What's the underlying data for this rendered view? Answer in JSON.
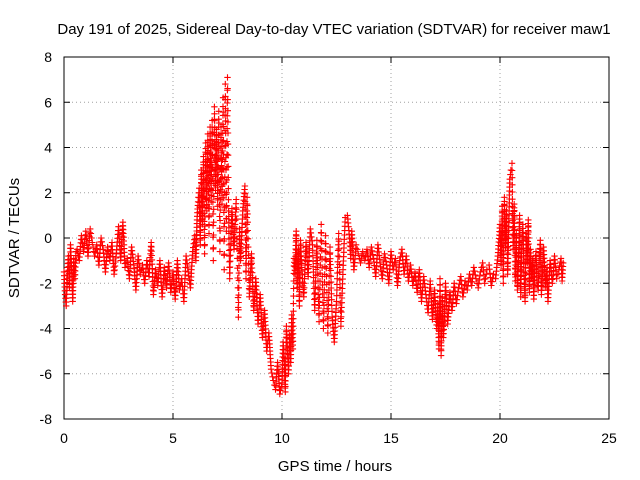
{
  "chart_data": {
    "type": "scatter",
    "title": "Day 191 of 2025, Sidereal Day-to-day VTEC variation (SDTVAR) for receiver maw1",
    "xlabel": "GPS time / hours",
    "ylabel": "SDTVAR / TECUs",
    "xlim": [
      0,
      25
    ],
    "ylim": [
      -8,
      8
    ],
    "xticks": [
      0,
      5,
      10,
      15,
      20,
      25
    ],
    "xtick_labels": [
      "0",
      "5",
      "10",
      "15",
      "20",
      "25"
    ],
    "yticks": [
      -8,
      -6,
      -4,
      -2,
      0,
      2,
      4,
      6,
      8
    ],
    "ytick_labels": [
      "-8",
      "-6",
      "-4",
      "-2",
      "0",
      "2",
      "4",
      "6",
      "8"
    ],
    "grid": true,
    "marker": "+",
    "color": "#ff0000",
    "series": [
      {
        "name": "SDTVAR",
        "points": [
          [
            0.0,
            -1.5
          ],
          [
            0.05,
            -2.5
          ],
          [
            0.1,
            -3.0
          ],
          [
            0.15,
            -1.8
          ],
          [
            0.2,
            -0.8
          ],
          [
            0.25,
            -2.2
          ],
          [
            0.3,
            -0.3
          ],
          [
            0.35,
            -1.4
          ],
          [
            0.4,
            -2.8
          ],
          [
            0.45,
            -0.9
          ],
          [
            0.5,
            -1.8
          ],
          [
            0.55,
            -0.6
          ],
          [
            0.6,
            -0.5
          ],
          [
            0.7,
            -1.0
          ],
          [
            0.8,
            0.1
          ],
          [
            0.9,
            -0.6
          ],
          [
            1.0,
            0.3
          ],
          [
            1.1,
            -0.8
          ],
          [
            1.2,
            0.4
          ],
          [
            1.3,
            -0.2
          ],
          [
            1.4,
            -0.8
          ],
          [
            1.5,
            -0.3
          ],
          [
            1.6,
            -1.2
          ],
          [
            1.7,
            0.0
          ],
          [
            1.8,
            -0.5
          ],
          [
            1.9,
            -1.5
          ],
          [
            2.0,
            -0.4
          ],
          [
            2.1,
            -1.0
          ],
          [
            2.2,
            -0.2
          ],
          [
            2.3,
            -1.6
          ],
          [
            2.4,
            -0.7
          ],
          [
            2.5,
            0.5
          ],
          [
            2.6,
            -1.0
          ],
          [
            2.7,
            0.7
          ],
          [
            2.8,
            -1.3
          ],
          [
            2.9,
            -0.9
          ],
          [
            3.0,
            -1.8
          ],
          [
            3.1,
            -0.4
          ],
          [
            3.2,
            -1.2
          ],
          [
            3.3,
            -2.3
          ],
          [
            3.4,
            -0.8
          ],
          [
            3.5,
            -1.6
          ],
          [
            3.6,
            -1.2
          ],
          [
            3.7,
            -2.0
          ],
          [
            3.8,
            -1.0
          ],
          [
            3.9,
            -1.7
          ],
          [
            4.0,
            -0.2
          ],
          [
            4.1,
            -2.5
          ],
          [
            4.2,
            -1.4
          ],
          [
            4.3,
            -2.1
          ],
          [
            4.4,
            -1.0
          ],
          [
            4.5,
            -2.6
          ],
          [
            4.6,
            -1.3
          ],
          [
            4.7,
            -2.2
          ],
          [
            4.8,
            -1.1
          ],
          [
            4.9,
            -2.4
          ],
          [
            5.0,
            -1.5
          ],
          [
            5.1,
            -2.7
          ],
          [
            5.2,
            -1.0
          ],
          [
            5.3,
            -2.3
          ],
          [
            5.4,
            -1.8
          ],
          [
            5.5,
            -2.8
          ],
          [
            5.6,
            -0.8
          ],
          [
            5.7,
            -1.5
          ],
          [
            5.8,
            -2.2
          ],
          [
            5.9,
            -0.6
          ],
          [
            6.0,
            0.1
          ],
          [
            6.05,
            -1.0
          ],
          [
            6.1,
            0.8
          ],
          [
            6.15,
            1.6
          ],
          [
            6.2,
            2.2
          ],
          [
            6.25,
            -0.3
          ],
          [
            6.3,
            3.0
          ],
          [
            6.35,
            0.6
          ],
          [
            6.4,
            3.6
          ],
          [
            6.45,
            -0.7
          ],
          [
            6.5,
            4.2
          ],
          [
            6.55,
            1.2
          ],
          [
            6.6,
            4.6
          ],
          [
            6.65,
            0.2
          ],
          [
            6.7,
            4.9
          ],
          [
            6.75,
            1.6
          ],
          [
            6.8,
            5.2
          ],
          [
            6.85,
            -1.0
          ],
          [
            6.9,
            5.8
          ],
          [
            6.95,
            2.1
          ],
          [
            7.0,
            4.8
          ],
          [
            7.05,
            1.4
          ],
          [
            7.1,
            5.6
          ],
          [
            7.15,
            -0.6
          ],
          [
            7.2,
            4.9
          ],
          [
            7.25,
            1.5
          ],
          [
            7.3,
            6.2
          ],
          [
            7.35,
            -1.4
          ],
          [
            7.4,
            6.8
          ],
          [
            7.45,
            0.3
          ],
          [
            7.5,
            7.1
          ],
          [
            7.55,
            1.2
          ],
          [
            7.6,
            -1.8
          ],
          [
            7.7,
            1.3
          ],
          [
            7.8,
            -0.5
          ],
          [
            7.9,
            1.7
          ],
          [
            8.0,
            -3.5
          ],
          [
            8.05,
            0.4
          ],
          [
            8.1,
            -1.0
          ],
          [
            8.2,
            1.2
          ],
          [
            8.3,
            2.3
          ],
          [
            8.35,
            -1.8
          ],
          [
            8.4,
            1.8
          ],
          [
            8.5,
            -2.6
          ],
          [
            8.6,
            -0.7
          ],
          [
            8.7,
            -3.2
          ],
          [
            8.8,
            -1.8
          ],
          [
            8.9,
            -3.8
          ],
          [
            9.0,
            -2.5
          ],
          [
            9.1,
            -4.4
          ],
          [
            9.2,
            -3.2
          ],
          [
            9.3,
            -5.0
          ],
          [
            9.4,
            -4.2
          ],
          [
            9.5,
            -5.8
          ],
          [
            9.6,
            -6.3
          ],
          [
            9.7,
            -6.7
          ],
          [
            9.8,
            -5.5
          ],
          [
            9.9,
            -6.9
          ],
          [
            10.0,
            -6.4
          ],
          [
            10.05,
            -4.6
          ],
          [
            10.1,
            -5.3
          ],
          [
            10.15,
            -6.8
          ],
          [
            10.2,
            -3.9
          ],
          [
            10.3,
            -6.0
          ],
          [
            10.35,
            -4.3
          ],
          [
            10.4,
            -5.5
          ],
          [
            10.45,
            -3.4
          ],
          [
            10.5,
            -4.9
          ],
          [
            10.55,
            -0.9
          ],
          [
            10.6,
            -1.6
          ],
          [
            10.65,
            0.3
          ],
          [
            10.7,
            -2.2
          ],
          [
            10.75,
            -0.5
          ],
          [
            10.8,
            -3.0
          ],
          [
            10.85,
            -0.1
          ],
          [
            10.9,
            -1.3
          ],
          [
            11.0,
            -2.6
          ],
          [
            11.1,
            -0.2
          ],
          [
            11.2,
            -1.7
          ],
          [
            11.3,
            0.4
          ],
          [
            11.4,
            -0.3
          ],
          [
            11.5,
            -3.2
          ],
          [
            11.6,
            -0.1
          ],
          [
            11.7,
            -3.7
          ],
          [
            11.8,
            0.6
          ],
          [
            11.9,
            -4.0
          ],
          [
            12.0,
            0.1
          ],
          [
            12.1,
            -4.2
          ],
          [
            12.2,
            -0.4
          ],
          [
            12.3,
            -3.5
          ],
          [
            12.4,
            -4.6
          ],
          [
            12.5,
            -2.8
          ],
          [
            12.6,
            0.2
          ],
          [
            12.7,
            -3.9
          ],
          [
            12.8,
            -1.4
          ],
          [
            12.9,
            0.9
          ],
          [
            13.0,
            1.0
          ],
          [
            13.1,
            0.0
          ],
          [
            13.15,
            -0.9
          ],
          [
            13.2,
            0.3
          ],
          [
            13.3,
            -1.4
          ],
          [
            13.4,
            -0.3
          ],
          [
            13.5,
            -0.7
          ],
          [
            13.6,
            -1.1
          ],
          [
            13.7,
            -0.6
          ],
          [
            13.8,
            -1.0
          ],
          [
            13.9,
            -0.5
          ],
          [
            14.0,
            -1.3
          ],
          [
            14.1,
            -0.4
          ],
          [
            14.2,
            -0.9
          ],
          [
            14.3,
            -1.7
          ],
          [
            14.4,
            -0.3
          ],
          [
            14.5,
            -1.1
          ],
          [
            14.6,
            -1.8
          ],
          [
            14.7,
            -0.7
          ],
          [
            14.8,
            -1.2
          ],
          [
            14.9,
            -2.0
          ],
          [
            15.0,
            -0.6
          ],
          [
            15.1,
            -1.4
          ],
          [
            15.2,
            -0.9
          ],
          [
            15.3,
            -2.1
          ],
          [
            15.4,
            -1.0
          ],
          [
            15.5,
            -0.5
          ],
          [
            15.6,
            -1.6
          ],
          [
            15.7,
            -0.8
          ],
          [
            15.8,
            -1.9
          ],
          [
            15.9,
            -1.2
          ],
          [
            16.0,
            -2.1
          ],
          [
            16.1,
            -1.5
          ],
          [
            16.2,
            -2.4
          ],
          [
            16.3,
            -1.4
          ],
          [
            16.4,
            -2.8
          ],
          [
            16.5,
            -1.7
          ],
          [
            16.6,
            -2.5
          ],
          [
            16.7,
            -3.3
          ],
          [
            16.8,
            -1.9
          ],
          [
            16.9,
            -3.6
          ],
          [
            17.0,
            -2.3
          ],
          [
            17.1,
            -4.0
          ],
          [
            17.15,
            -2.9
          ],
          [
            17.2,
            -4.9
          ],
          [
            17.25,
            -1.8
          ],
          [
            17.3,
            -5.2
          ],
          [
            17.35,
            -2.6
          ],
          [
            17.4,
            -4.4
          ],
          [
            17.45,
            -3.5
          ],
          [
            17.5,
            -2.0
          ],
          [
            17.6,
            -3.8
          ],
          [
            17.7,
            -2.4
          ],
          [
            17.8,
            -3.2
          ],
          [
            17.9,
            -2.0
          ],
          [
            18.0,
            -2.9
          ],
          [
            18.1,
            -2.2
          ],
          [
            18.2,
            -1.7
          ],
          [
            18.3,
            -2.6
          ],
          [
            18.4,
            -1.9
          ],
          [
            18.5,
            -2.3
          ],
          [
            18.6,
            -1.6
          ],
          [
            18.7,
            -2.1
          ],
          [
            18.8,
            -1.3
          ],
          [
            18.9,
            -1.8
          ],
          [
            19.0,
            -2.2
          ],
          [
            19.1,
            -1.5
          ],
          [
            19.2,
            -1.1
          ],
          [
            19.3,
            -2.0
          ],
          [
            19.4,
            -1.4
          ],
          [
            19.5,
            -1.2
          ],
          [
            19.6,
            -2.1
          ],
          [
            19.7,
            -1.6
          ],
          [
            19.8,
            -1.8
          ],
          [
            19.9,
            -0.8
          ],
          [
            20.0,
            0.6
          ],
          [
            20.05,
            -1.2
          ],
          [
            20.1,
            1.4
          ],
          [
            20.15,
            -2.0
          ],
          [
            20.2,
            1.8
          ],
          [
            20.25,
            -0.4
          ],
          [
            20.3,
            1.2
          ],
          [
            20.35,
            -1.6
          ],
          [
            20.4,
            0.5
          ],
          [
            20.45,
            2.6
          ],
          [
            20.5,
            3.0
          ],
          [
            20.55,
            3.3
          ],
          [
            20.6,
            -0.5
          ],
          [
            20.65,
            1.5
          ],
          [
            20.7,
            -1.9
          ],
          [
            20.75,
            0.2
          ],
          [
            20.8,
            -2.3
          ],
          [
            20.85,
            -1.0
          ],
          [
            20.9,
            1.0
          ],
          [
            20.95,
            -2.6
          ],
          [
            21.0,
            -0.3
          ],
          [
            21.05,
            0.6
          ],
          [
            21.1,
            -1.5
          ],
          [
            21.15,
            -2.8
          ],
          [
            21.2,
            0.2
          ],
          [
            21.25,
            -1.1
          ],
          [
            21.3,
            0.8
          ],
          [
            21.35,
            -2.4
          ],
          [
            21.4,
            -0.5
          ],
          [
            21.45,
            -1.8
          ],
          [
            21.5,
            -0.9
          ],
          [
            21.55,
            -2.7
          ],
          [
            21.6,
            -1.2
          ],
          [
            21.65,
            -0.6
          ],
          [
            21.7,
            -1.9
          ],
          [
            21.75,
            -2.3
          ],
          [
            21.8,
            -1.0
          ],
          [
            21.85,
            -0.1
          ],
          [
            21.9,
            -2.5
          ],
          [
            21.95,
            -1.6
          ],
          [
            22.0,
            -0.4
          ],
          [
            22.1,
            -2.2
          ],
          [
            22.15,
            -1.3
          ],
          [
            22.2,
            -2.8
          ],
          [
            22.3,
            -1.0
          ],
          [
            22.4,
            -2.0
          ],
          [
            22.45,
            -1.6
          ],
          [
            22.5,
            -0.8
          ],
          [
            22.6,
            -1.8
          ],
          [
            22.7,
            -1.4
          ],
          [
            22.8,
            -0.9
          ],
          [
            22.85,
            -1.9
          ],
          [
            22.9,
            -1.1
          ]
        ]
      }
    ]
  }
}
